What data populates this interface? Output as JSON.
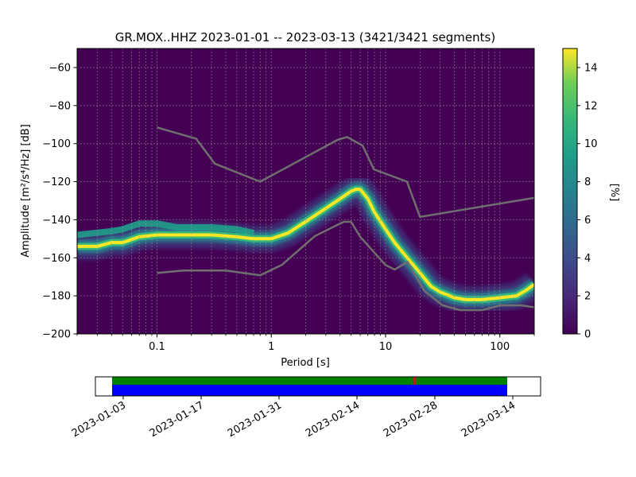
{
  "title": "GR.MOX..HHZ   2023-01-01 -- 2023-03-13  (3421/3421 segments)",
  "chart_data": [
    {
      "type": "heatmap",
      "subtype": "probabilistic-power-spectral-density",
      "xlabel": "Period [s]",
      "ylabel": "Amplitude [m²/s⁴/Hz] [dB]",
      "xscale": "log",
      "xlim": [
        0.02,
        200
      ],
      "ylim": [
        -200,
        -50
      ],
      "xticks": [
        0.1,
        1,
        10,
        100
      ],
      "xtick_labels": [
        "0.1",
        "1",
        "10",
        "100"
      ],
      "yticks": [
        -60,
        -80,
        -100,
        -120,
        -140,
        -160,
        -180,
        -200
      ],
      "ytick_labels": [
        "−60",
        "−80",
        "−100",
        "−120",
        "−140",
        "−160",
        "−180",
        "−200"
      ],
      "grid": true,
      "colormap": "viridis",
      "colorbar": {
        "label": "[%]",
        "range": [
          0,
          15
        ],
        "ticks": [
          0,
          2,
          4,
          6,
          8,
          10,
          12,
          14
        ],
        "tick_labels": [
          "0",
          "2",
          "4",
          "6",
          "8",
          "10",
          "12",
          "14"
        ]
      },
      "mode_curve": {
        "period": [
          0.02,
          0.03,
          0.04,
          0.05,
          0.07,
          0.1,
          0.15,
          0.2,
          0.3,
          0.5,
          0.7,
          1.0,
          1.4,
          2.0,
          3.0,
          4.0,
          5.0,
          5.5,
          6.0,
          7.0,
          8.0,
          10.0,
          12.0,
          15.0,
          20.0,
          25.0,
          30.0,
          40.0,
          50.0,
          70.0,
          100.0,
          140.0,
          170.0,
          200.0
        ],
        "db": [
          -154,
          -154,
          -152,
          -152,
          -149,
          -148,
          -148,
          -148,
          -148,
          -149,
          -150,
          -150,
          -147,
          -141,
          -134,
          -129,
          -125,
          -124,
          -124,
          -129,
          -136,
          -145,
          -152,
          -159,
          -168,
          -175,
          -178,
          -181,
          -182,
          -182,
          -181,
          -180,
          -177,
          -174
        ]
      },
      "secondary_curve": {
        "period": [
          0.02,
          0.04,
          0.05,
          0.07,
          0.1,
          0.15,
          0.2,
          0.3,
          0.5,
          0.7
        ],
        "db": [
          -148,
          -146,
          -145,
          -142,
          -142,
          -144,
          -144,
          -144,
          -145,
          -147
        ]
      },
      "noise_models": {
        "high": {
          "period": [
            0.1,
            0.22,
            0.32,
            0.8,
            3.8,
            4.6,
            6.3,
            7.9,
            15.4,
            20.0,
            354.8
          ],
          "db": [
            -91.5,
            -97.4,
            -110.5,
            -120.0,
            -98.0,
            -96.5,
            -101.0,
            -113.5,
            -120.0,
            -138.5,
            -126.0
          ]
        },
        "low": {
          "period": [
            0.1,
            0.17,
            0.4,
            0.8,
            1.24,
            2.4,
            4.3,
            5.0,
            6.0,
            10.0,
            12.0,
            15.6,
            21.9,
            31.6,
            45.0,
            70.0,
            101.0,
            154.0,
            200.0
          ],
          "db": [
            -168.0,
            -166.7,
            -166.7,
            -169.2,
            -163.7,
            -148.6,
            -141.1,
            -141.1,
            -149.0,
            -163.8,
            -166.2,
            -162.1,
            -177.5,
            -185.0,
            -187.5,
            -187.5,
            -185.0,
            -185.0,
            -186.0
          ]
        }
      }
    },
    {
      "type": "timeline",
      "xlabel": "",
      "tick_labels": [
        "2023-01-03",
        "2023-01-17",
        "2023-01-31",
        "2023-02-14",
        "2023-02-28",
        "2023-03-14"
      ],
      "xlim": [
        "2022-12-29",
        "2023-03-19"
      ],
      "data_coverage": {
        "start": "2023-01-01",
        "end": "2023-03-13",
        "color": "#0000ff"
      },
      "used_segments": {
        "start": "2023-01-01",
        "end": "2023-03-13",
        "color": "#008000"
      },
      "gap_marker": {
        "date": "2023-02-24",
        "color": "#b22222"
      }
    }
  ]
}
